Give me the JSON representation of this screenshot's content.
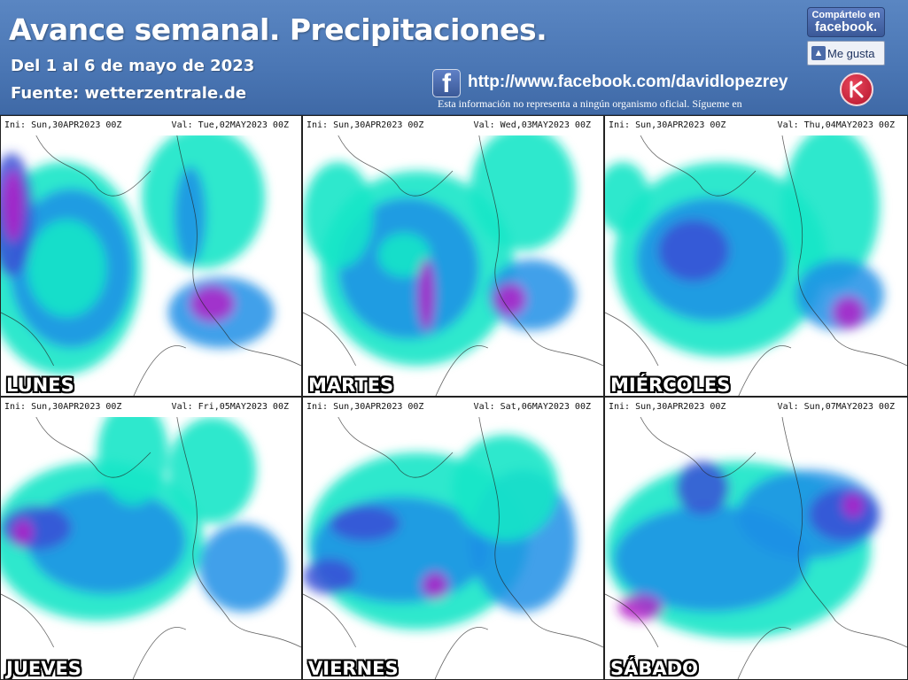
{
  "header": {
    "title": "Avance semanal. Precipitaciones.",
    "subtitle": "Del 1 al 6 de mayo de 2023",
    "source": "Fuente: wetterzentrale.de",
    "facebook_url": "http://www.facebook.com/davidlopezrey",
    "disclaimer": "Esta información no representa a ningún organismo oficial. Sígueme en",
    "share": {
      "top": "Compártelo en",
      "brand": "facebook."
    },
    "like_label": "Me gusta"
  },
  "colors": {
    "header_bg": "#4a76b4",
    "precip_light": "#14e6c8",
    "precip_mid": "#1f8fe6",
    "precip_heavy": "#3a4fd6",
    "precip_extreme": "#b41ec8",
    "facebook": "#3b5998"
  },
  "icons": [
    "facebook-icon",
    "like-thumb-icon",
    "author-logo-icon"
  ],
  "panels": [
    {
      "id": "lunes",
      "ini": "Ini: Sun,30APR2023  00Z",
      "val": "Val: Tue,02MAY2023  00Z",
      "day": "LUNES"
    },
    {
      "id": "martes",
      "ini": "Ini: Sun,30APR2023  00Z",
      "val": "Val: Wed,03MAY2023  00Z",
      "day": "MARTES"
    },
    {
      "id": "miercoles",
      "ini": "Ini: Sun,30APR2023  00Z",
      "val": "Val: Thu,04MAY2023  00Z",
      "day": "MIÉRCOLES"
    },
    {
      "id": "jueves",
      "ini": "Ini: Sun,30APR2023  00Z",
      "val": "Val: Fri,05MAY2023  00Z",
      "day": "JUEVES"
    },
    {
      "id": "viernes",
      "ini": "Ini: Sun,30APR2023  00Z",
      "val": "Val: Sat,06MAY2023  00Z",
      "day": "VIERNES"
    },
    {
      "id": "sabado",
      "ini": "Ini: Sun,30APR2023  00Z",
      "val": "Val: Sun,07MAY2023  00Z",
      "day": "SÁBADO"
    }
  ]
}
